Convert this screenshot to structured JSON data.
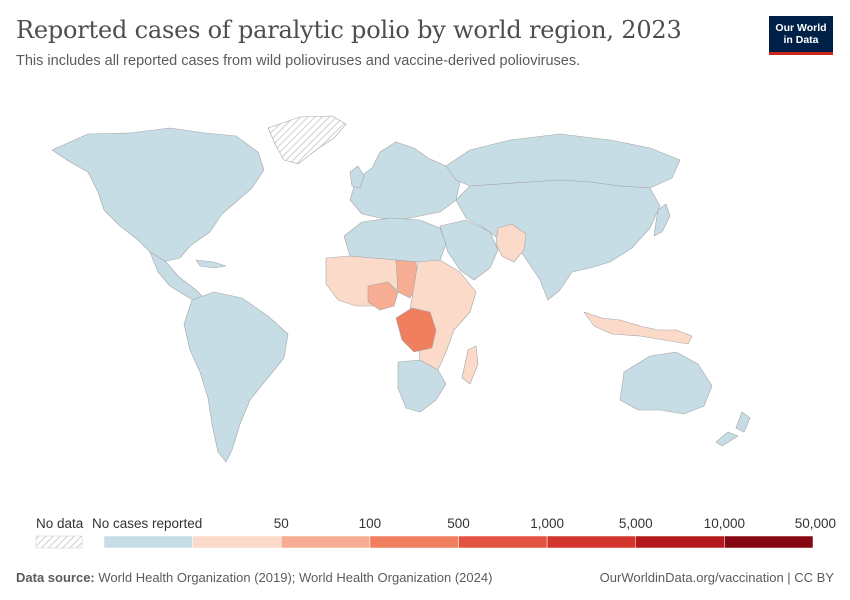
{
  "header": {
    "title": "Reported cases of paralytic polio by world region, 2023",
    "subtitle": "This includes all reported cases from wild polioviruses and vaccine-derived polioviruses."
  },
  "logo": {
    "line1": "Our World",
    "line2": "in Data"
  },
  "colors": {
    "no_cases": "#c6dde6",
    "bin_1": "#fbdac9",
    "bin_2": "#f6ad93",
    "bin_3": "#f07f60",
    "bin_4": "#e35140",
    "bin_5": "#d1352b",
    "bin_6": "#b3191d",
    "bin_7": "#840711",
    "no_data": "#e8e8e8",
    "border": "#a6a6a6"
  },
  "legend": {
    "no_data_label": "No data",
    "no_cases_label": "No cases reported",
    "thresholds": [
      "50",
      "100",
      "500",
      "1,000",
      "5,000",
      "10,000",
      "50,000"
    ]
  },
  "highlighted_regions": [
    {
      "name": "Democratic Republic of Congo",
      "color_bin": "bin_3"
    },
    {
      "name": "Nigeria",
      "color_bin": "bin_2"
    },
    {
      "name": "Chad",
      "color_bin": "bin_2"
    }
  ],
  "footer": {
    "source_label": "Data source:",
    "source_text": "World Health Organization (2019); World Health Organization (2024)",
    "url": "OurWorldinData.org/vaccination | CC BY"
  }
}
